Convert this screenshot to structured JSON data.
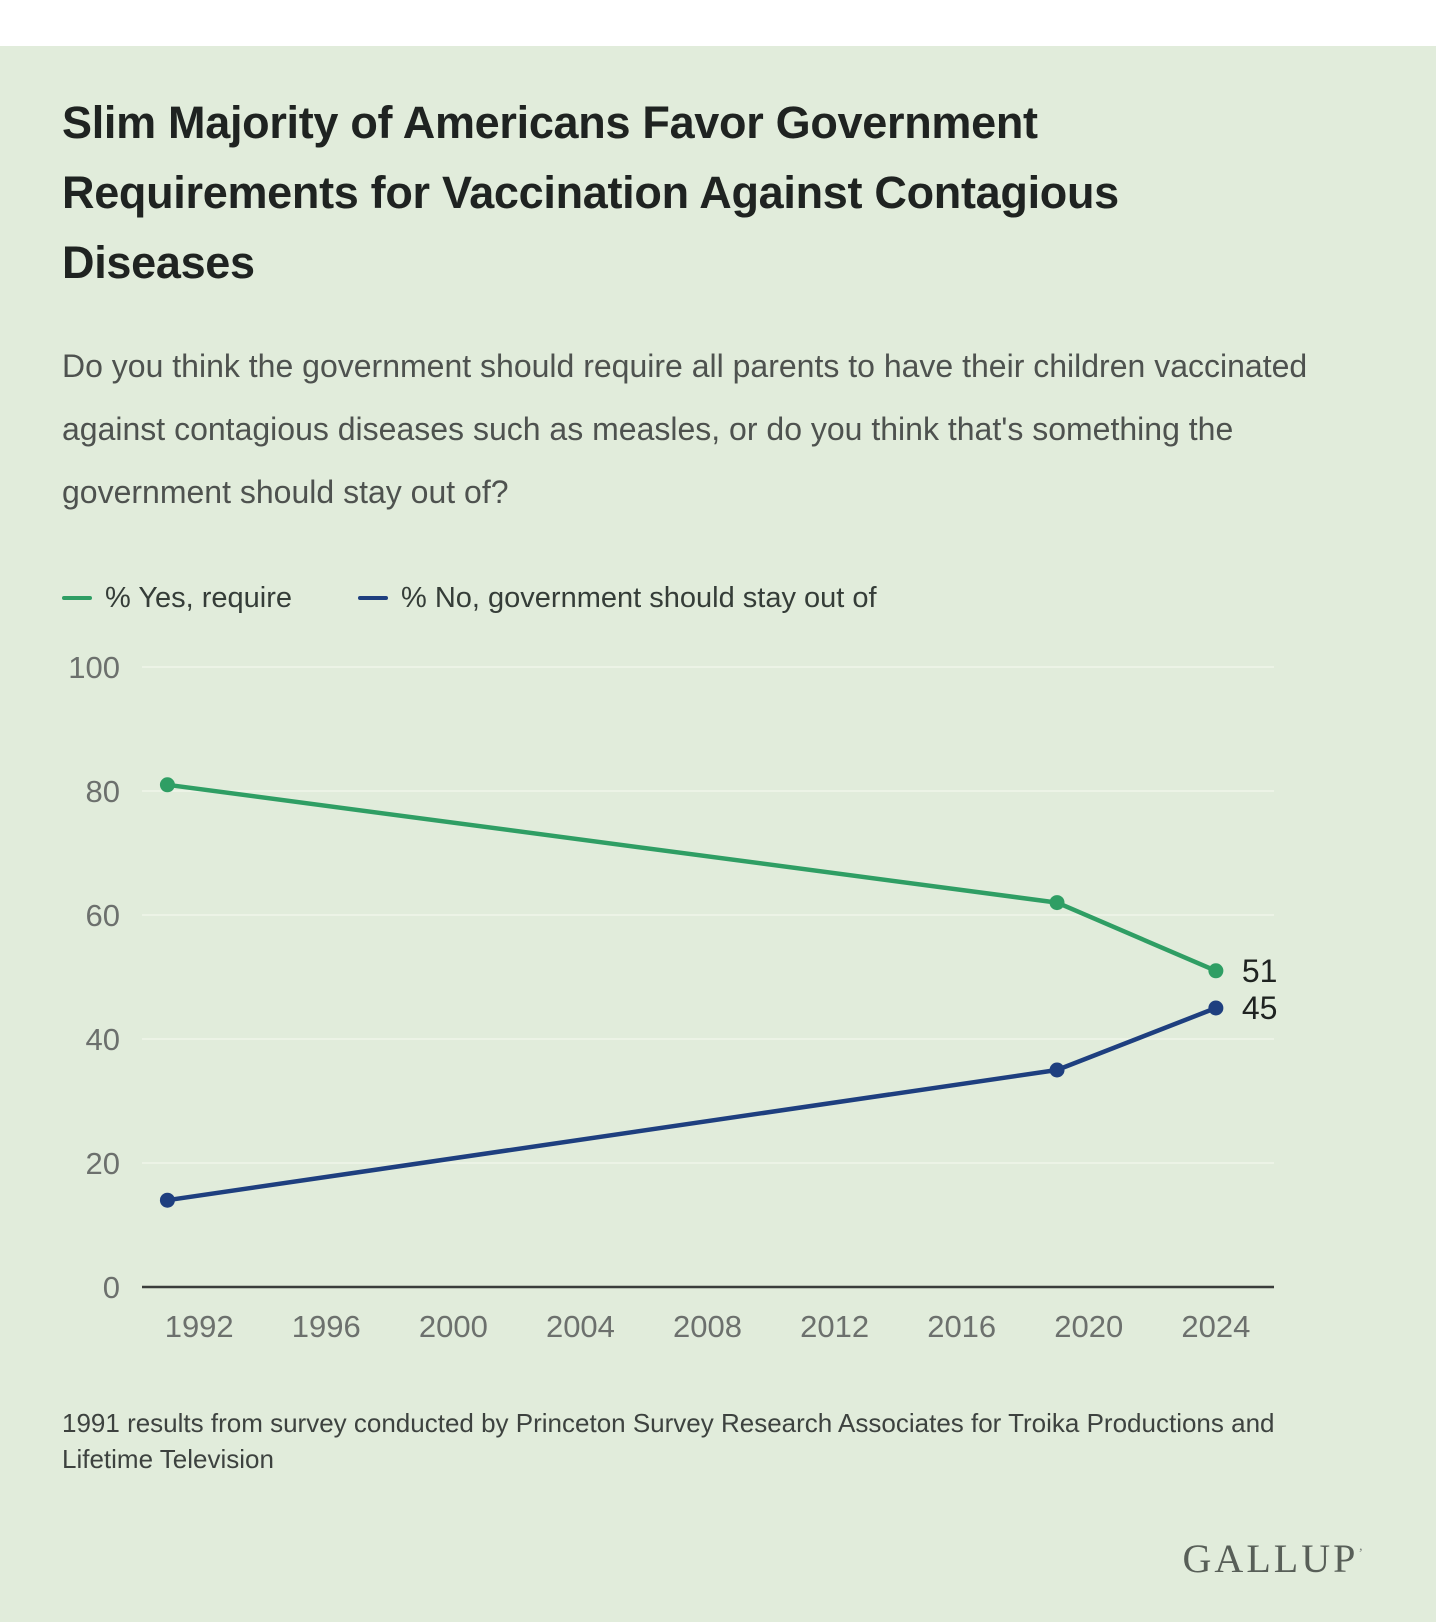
{
  "page": {
    "title": "Slim Majority of Americans Favor Government Requirements for Vaccination Against Contagious Diseases",
    "subtitle": "Do you think the government should require all parents to have their children vaccinated against contagious diseases such as measles, or do you think that's something the government should stay out of?",
    "footnote": "1991 results from survey conducted by Princeton Survey Research Associates for Troika Productions and Lifetime Television",
    "brand": "GALLUP",
    "brand_mark": "’"
  },
  "colors": {
    "background": "#e1ecdb",
    "green": "#2f9e64",
    "navy": "#1e3f7f",
    "title_text": "#1f2321",
    "body_text": "#4e524f",
    "axis_text": "#6c706d",
    "grid": "#ecf3e6",
    "axis_line": "#3a3d3b"
  },
  "legend": [
    {
      "label": "% Yes, require",
      "color_key": "green"
    },
    {
      "label": "% No, government should stay out of",
      "color_key": "navy"
    }
  ],
  "chart_data": {
    "type": "line",
    "title": "Slim Majority of Americans Favor Government Requirements for Vaccination Against Contagious Diseases",
    "x": [
      1991,
      2019,
      2024
    ],
    "series": [
      {
        "name": "% Yes, require",
        "color": "#2f9e64",
        "values": [
          81,
          62,
          51
        ]
      },
      {
        "name": "% No, government should stay out of",
        "color": "#1e3f7f",
        "values": [
          14,
          35,
          45
        ]
      }
    ],
    "end_labels": [
      "51",
      "45"
    ],
    "xlabel": "",
    "ylabel": "",
    "ylim": [
      0,
      100
    ],
    "yticks": [
      0,
      20,
      40,
      60,
      80,
      100
    ],
    "xticks": [
      1992,
      1996,
      2000,
      2004,
      2008,
      2012,
      2016,
      2020,
      2024
    ],
    "x_domain": [
      1990.2,
      2025.2
    ],
    "grid": "horizontal",
    "legend_position": "top"
  }
}
